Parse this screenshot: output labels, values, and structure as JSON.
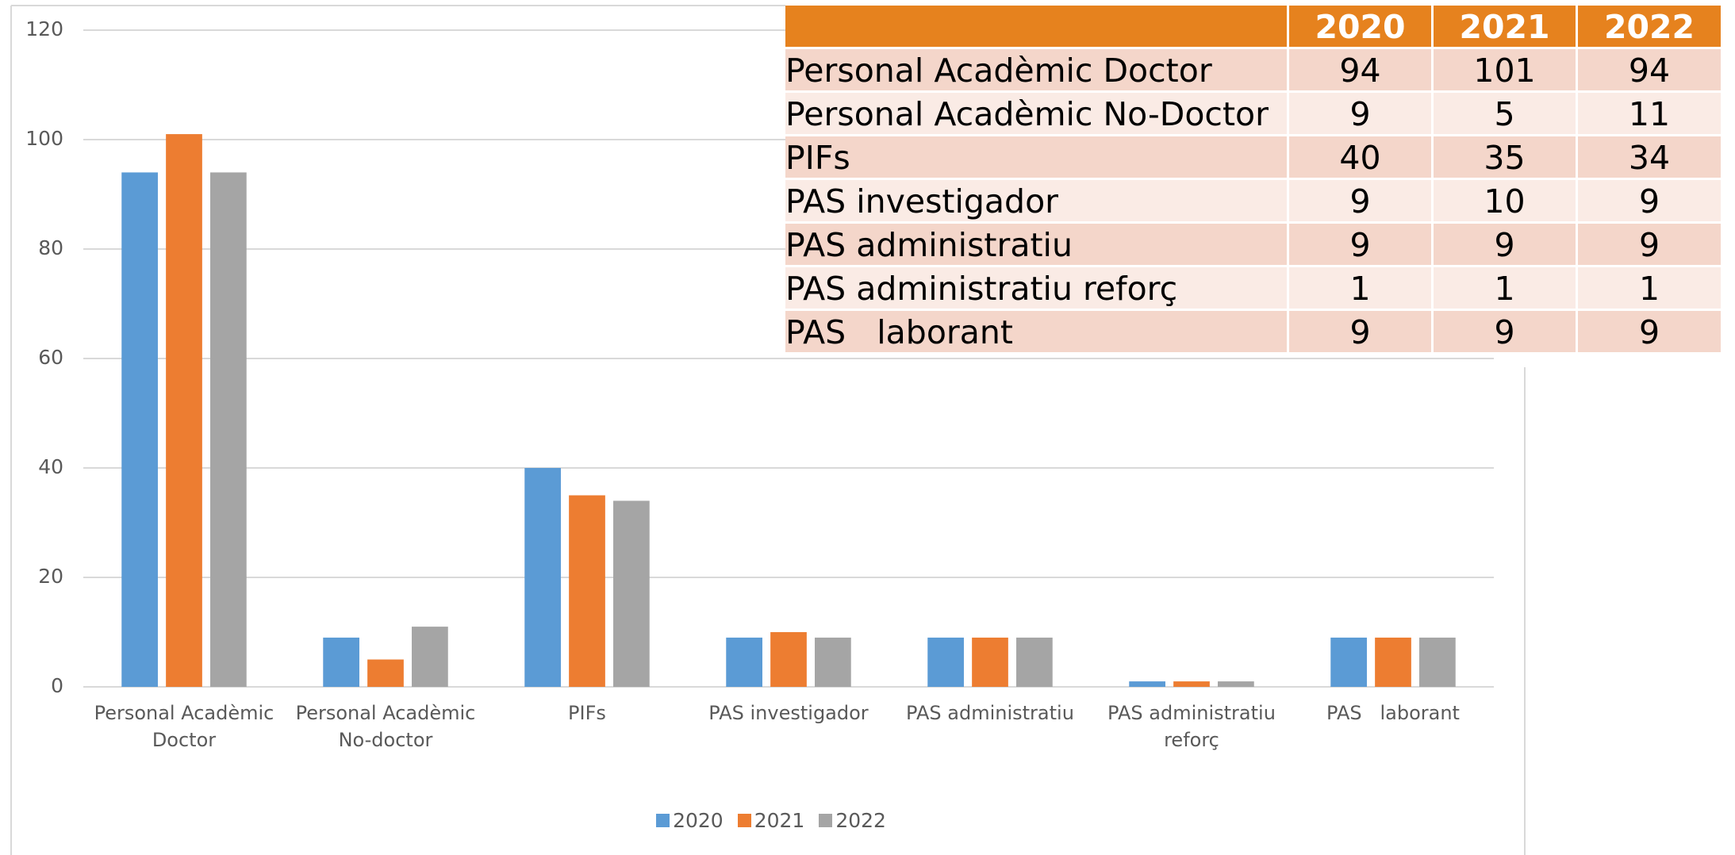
{
  "chart_data": {
    "type": "bar",
    "categories": [
      "Personal Acadèmic Doctor",
      "Personal Acadèmic No-doctor",
      "PIFs",
      "PAS investigador",
      "PAS administratiu",
      "PAS administratiu reforç",
      "PAS   laborant"
    ],
    "series": [
      {
        "name": "2020",
        "color": "#5b9bd5",
        "values": [
          94,
          9,
          40,
          9,
          9,
          1,
          9
        ]
      },
      {
        "name": "2021",
        "color": "#ed7d31",
        "values": [
          101,
          5,
          35,
          10,
          9,
          1,
          9
        ]
      },
      {
        "name": "2022",
        "color": "#a5a5a5",
        "values": [
          94,
          11,
          34,
          9,
          9,
          1,
          9
        ]
      }
    ],
    "ylim": [
      0,
      120
    ],
    "yticks": [
      0,
      20,
      40,
      60,
      80,
      100,
      120
    ],
    "grid": true,
    "legend": "bottom"
  },
  "table": {
    "rows": [
      "Personal Acadèmic Doctor",
      "Personal Acadèmic No-Doctor",
      "PIFs",
      "PAS investigador",
      "PAS administratiu",
      "PAS administratiu reforç",
      "PAS   laborant"
    ]
  }
}
